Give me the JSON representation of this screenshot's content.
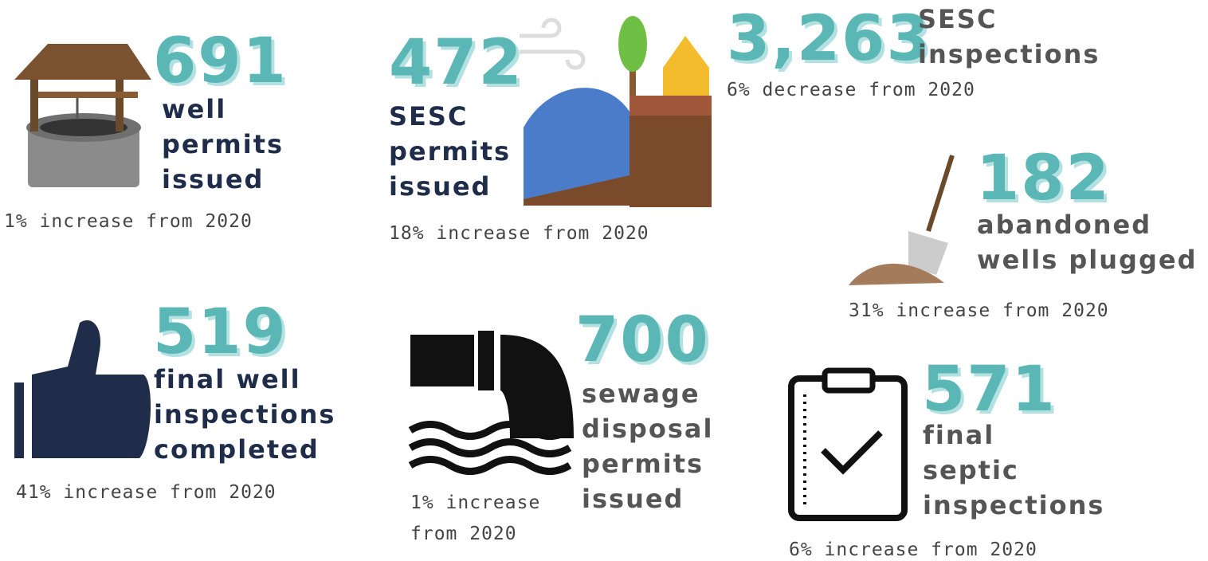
{
  "stats": [
    {
      "number": "691",
      "label": [
        "well",
        "permits",
        "issued"
      ],
      "note": [
        "1% increase from 2020"
      ]
    },
    {
      "number": "472",
      "label": [
        "SESC",
        "permits",
        "issued"
      ],
      "note": [
        "18% increase from 2020"
      ]
    },
    {
      "number": "3,263",
      "label": [
        "SESC",
        "inspections"
      ],
      "note": [
        "6% decrease from 2020"
      ]
    },
    {
      "number": "182",
      "label": [
        "abandoned",
        "wells plugged"
      ],
      "note": [
        "31% increase from 2020"
      ]
    },
    {
      "number": "519",
      "label": [
        "final well",
        "inspections",
        "completed"
      ],
      "note": [
        "41% increase from 2020"
      ]
    },
    {
      "number": "700",
      "label": [
        "sewage",
        "disposal",
        "permits",
        "issued"
      ],
      "note": [
        "1% increase",
        "from 2020"
      ]
    },
    {
      "number": "571",
      "label": [
        "final",
        "septic",
        "inspections"
      ],
      "note": [
        "6% increase from 2020"
      ]
    }
  ]
}
